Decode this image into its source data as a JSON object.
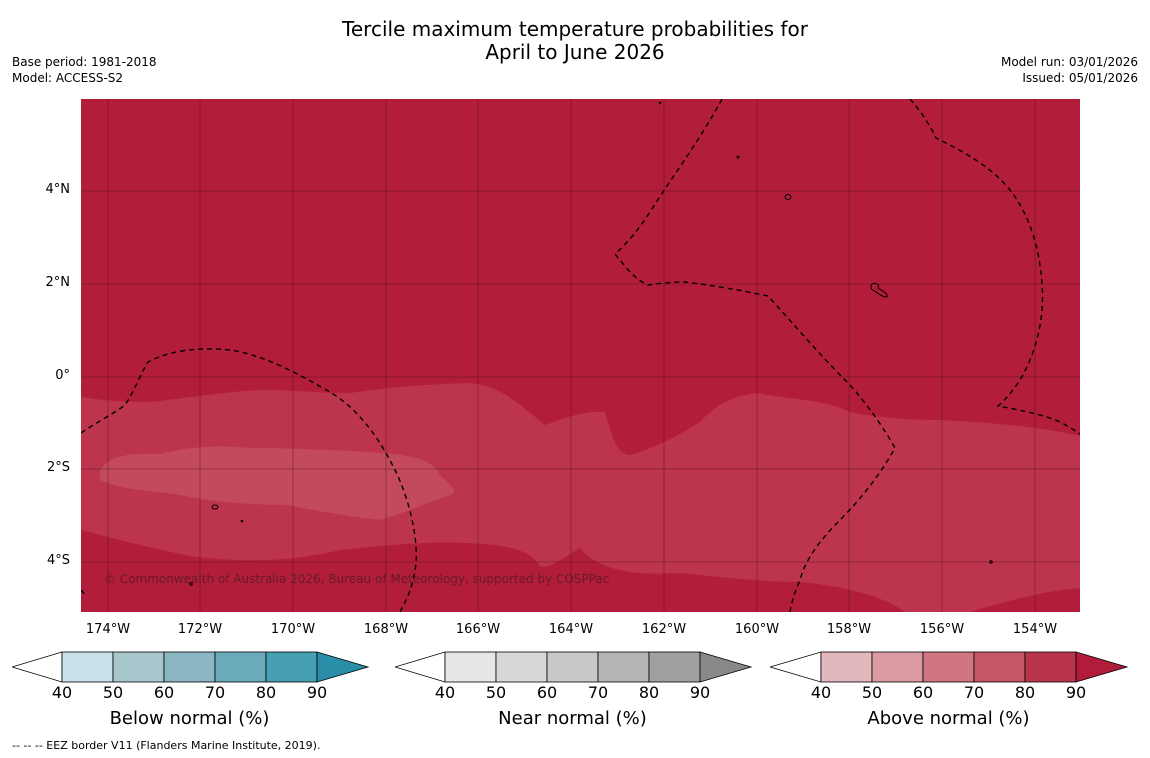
{
  "title": {
    "line1": "Tercile maximum temperature probabilities for",
    "line2": "April to June 2026"
  },
  "meta_left": {
    "base_period": "Base period: 1981-2018",
    "model": "Model: ACCESS-S2"
  },
  "meta_right": {
    "model_run": "Model run: 03/01/2026",
    "issued": "Issued: 05/01/2026"
  },
  "map": {
    "lat_labels": [
      "4°N",
      "2°N",
      "0°",
      "2°S",
      "4°S"
    ],
    "lon_labels": [
      "174°W",
      "172°W",
      "170°W",
      "168°W",
      "166°W",
      "164°W",
      "162°W",
      "160°W",
      "158°W",
      "156°W",
      "154°W"
    ],
    "copyright": "© Commonwealth of Australia 2026, Bureau of Meteorology, supported by COSPPac",
    "colors": {
      "above_80_90": "#b21d3a",
      "above_70_80": "#bd344d",
      "above_60_70": "#c34a5b",
      "eez_line": "#000000",
      "grid": "#3a0a12"
    }
  },
  "colorbars": [
    {
      "title": "Below normal (%)",
      "ticks": [
        "40",
        "50",
        "60",
        "70",
        "80",
        "90"
      ],
      "colors": [
        "#ffffff",
        "#c9e2e9",
        "#a8c7cc",
        "#8bb6c3",
        "#6aabbb",
        "#46a0b2",
        "#2a8ea8"
      ]
    },
    {
      "title": "Near normal (%)",
      "ticks": [
        "40",
        "50",
        "60",
        "70",
        "80",
        "90"
      ],
      "colors": [
        "#ffffff",
        "#e6e6e6",
        "#d8d8d8",
        "#c8c8c8",
        "#b5b5b5",
        "#a0a0a0",
        "#888888"
      ]
    },
    {
      "title": "Above normal (%)",
      "ticks": [
        "40",
        "50",
        "60",
        "70",
        "80",
        "90"
      ],
      "colors": [
        "#ffffff",
        "#e2b8bd",
        "#d99aa2",
        "#cf7682",
        "#c45763",
        "#b93549",
        "#b01c3a"
      ]
    }
  ],
  "footnote": "--  --  -- EEZ border V11 (Flanders Marine Institute, 2019)."
}
